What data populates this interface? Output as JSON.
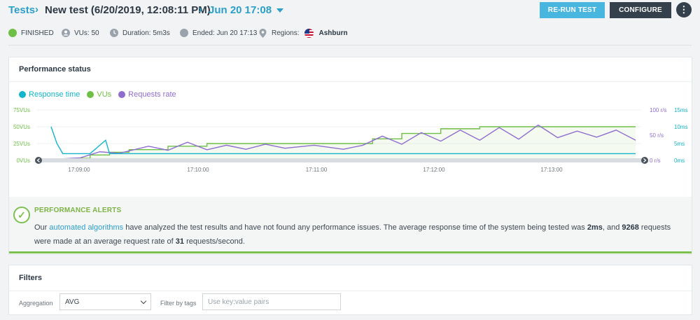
{
  "breadcrumb": {
    "root": "Tests",
    "sep1": "›",
    "test_name": "New test (6/20/2019, 12:08:11 PM)",
    "sep2": "›",
    "run": "Jun 20 17:08"
  },
  "actions": {
    "rerun_label": "RE-RUN TEST",
    "configure_label": "CONFIGURE",
    "more_label": "⋮"
  },
  "status": {
    "state": "FINISHED",
    "vus": "VUs: 50",
    "duration": "Duration: 5m3s",
    "ended": "Ended: Jun 20 17:13",
    "regions_label": "Regions:",
    "region": "Ashburn"
  },
  "colors": {
    "response_time": "#12b5cb",
    "vus": "#6fbf46",
    "requests_rate": "#8e6dcf",
    "accent": "#2c9fc9"
  },
  "performance": {
    "title": "Performance status",
    "legend": [
      "Response time",
      "VUs",
      "Requests rate"
    ]
  },
  "chart_data": {
    "type": "line",
    "x_ticks": [
      "17:09:00",
      "17:10:00",
      "17:11:00",
      "17:12:00",
      "17:13:00"
    ],
    "y_left_ticks": [
      "0VUs",
      "25VUs",
      "50VUs",
      "75VUs"
    ],
    "y_right1_ticks": [
      "0 r/s",
      "50 r/s",
      "100 r/s"
    ],
    "y_right2_ticks": [
      "0ms",
      "5ms",
      "10ms",
      "15ms"
    ],
    "x_range_seconds": [
      0,
      300
    ],
    "series": [
      {
        "name": "VUs",
        "axis": "left",
        "ylim": [
          0,
          75
        ],
        "x": [
          0,
          10,
          20,
          30,
          40,
          60,
          80,
          100,
          120,
          150,
          165,
          180,
          200,
          220,
          240,
          260,
          280,
          300
        ],
        "values": [
          0,
          3,
          8,
          12,
          16,
          21,
          25,
          25,
          25,
          25,
          32,
          40,
          47,
          50,
          50,
          50,
          50,
          50
        ]
      },
      {
        "name": "Requests rate",
        "axis": "right1",
        "ylim": [
          0,
          100
        ],
        "x": [
          0,
          15,
          25,
          35,
          50,
          60,
          70,
          80,
          90,
          100,
          110,
          120,
          135,
          150,
          160,
          170,
          180,
          190,
          200,
          210,
          220,
          230,
          240,
          250,
          260,
          270,
          280,
          290,
          300
        ],
        "values": [
          2,
          5,
          17,
          14,
          28,
          20,
          36,
          21,
          30,
          22,
          32,
          24,
          30,
          22,
          30,
          48,
          32,
          55,
          38,
          60,
          40,
          65,
          42,
          70,
          45,
          58,
          46,
          60,
          40
        ]
      },
      {
        "name": "Response time",
        "axis": "right2",
        "ylim": [
          0,
          15
        ],
        "x": [
          0,
          3,
          6,
          20,
          28,
          30,
          40,
          60,
          80,
          100,
          120,
          140,
          160,
          180,
          200,
          220,
          240,
          260,
          280,
          300
        ],
        "values": [
          10,
          5,
          2,
          2,
          6,
          2,
          2,
          2,
          2,
          2,
          2,
          2,
          2,
          2,
          2,
          2,
          2,
          2,
          2,
          2
        ]
      }
    ]
  },
  "alert": {
    "title": "PERFORMANCE ALERTS",
    "part1": "Our ",
    "link": "automated algorithms",
    "part2": " have analyzed the test results and have not found any performance issues. The average response time of the system being tested was ",
    "avg_response": "2ms",
    "part3": ", and ",
    "requests": "9268",
    "part4": " requests were made at an average request rate of ",
    "rate": "31",
    "part5": " requests/second."
  },
  "filters": {
    "title": "Filters",
    "aggregation_label": "Aggregation",
    "aggregation_value": "AVG",
    "tags_label": "Filter by tags",
    "tags_placeholder": "Use key:value pairs"
  }
}
